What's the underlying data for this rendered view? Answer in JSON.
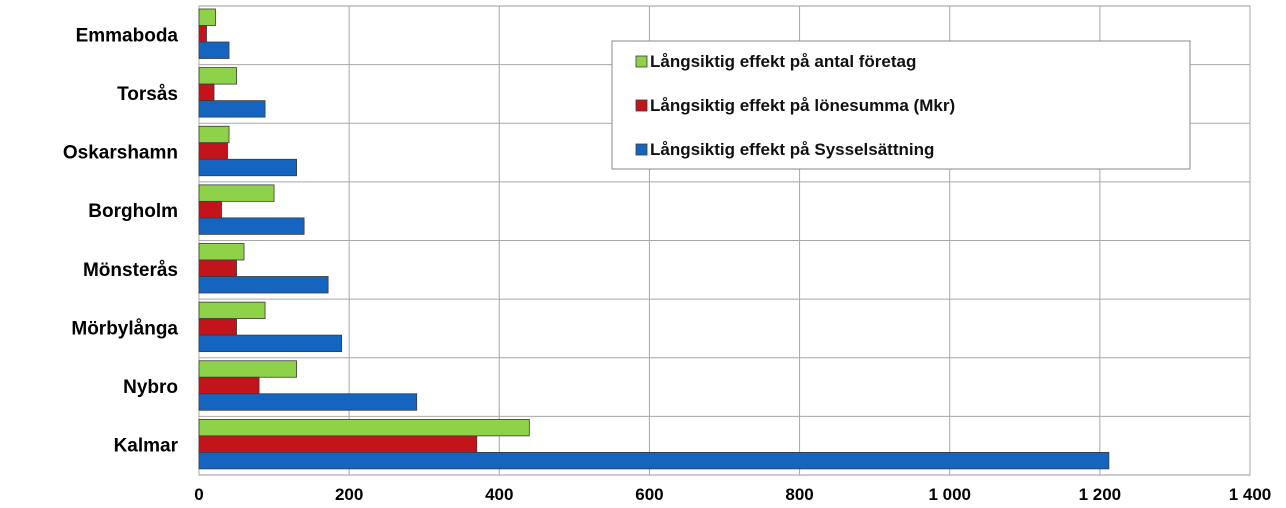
{
  "chart_data": {
    "type": "bar",
    "orientation": "horizontal",
    "categories": [
      "Emmaboda",
      "Torsås",
      "Oskarshamn",
      "Borgholm",
      "Mönsterås",
      "Mörbylånga",
      "Nybro",
      "Kalmar"
    ],
    "series": [
      {
        "name": "Långsiktig effekt på antal företag",
        "color": "#8ed24a",
        "values": [
          22,
          50,
          40,
          100,
          60,
          88,
          130,
          440
        ]
      },
      {
        "name": "Långsiktig effekt på lönesumma (Mkr)",
        "color": "#c4141b",
        "values": [
          10,
          20,
          38,
          30,
          50,
          50,
          80,
          370
        ]
      },
      {
        "name": "Långsiktig effekt på Sysselsättning",
        "color": "#1565c0",
        "values": [
          40,
          88,
          130,
          140,
          172,
          190,
          290,
          1212
        ]
      }
    ],
    "xlim": [
      0,
      1400
    ],
    "xticks": [
      0,
      200,
      400,
      600,
      800,
      1000,
      1200,
      1400
    ],
    "xtick_labels": [
      "0",
      "200",
      "400",
      "600",
      "800",
      "1 000",
      "1 200",
      "1 400"
    ],
    "grid": true,
    "legend_position": "top-right"
  }
}
